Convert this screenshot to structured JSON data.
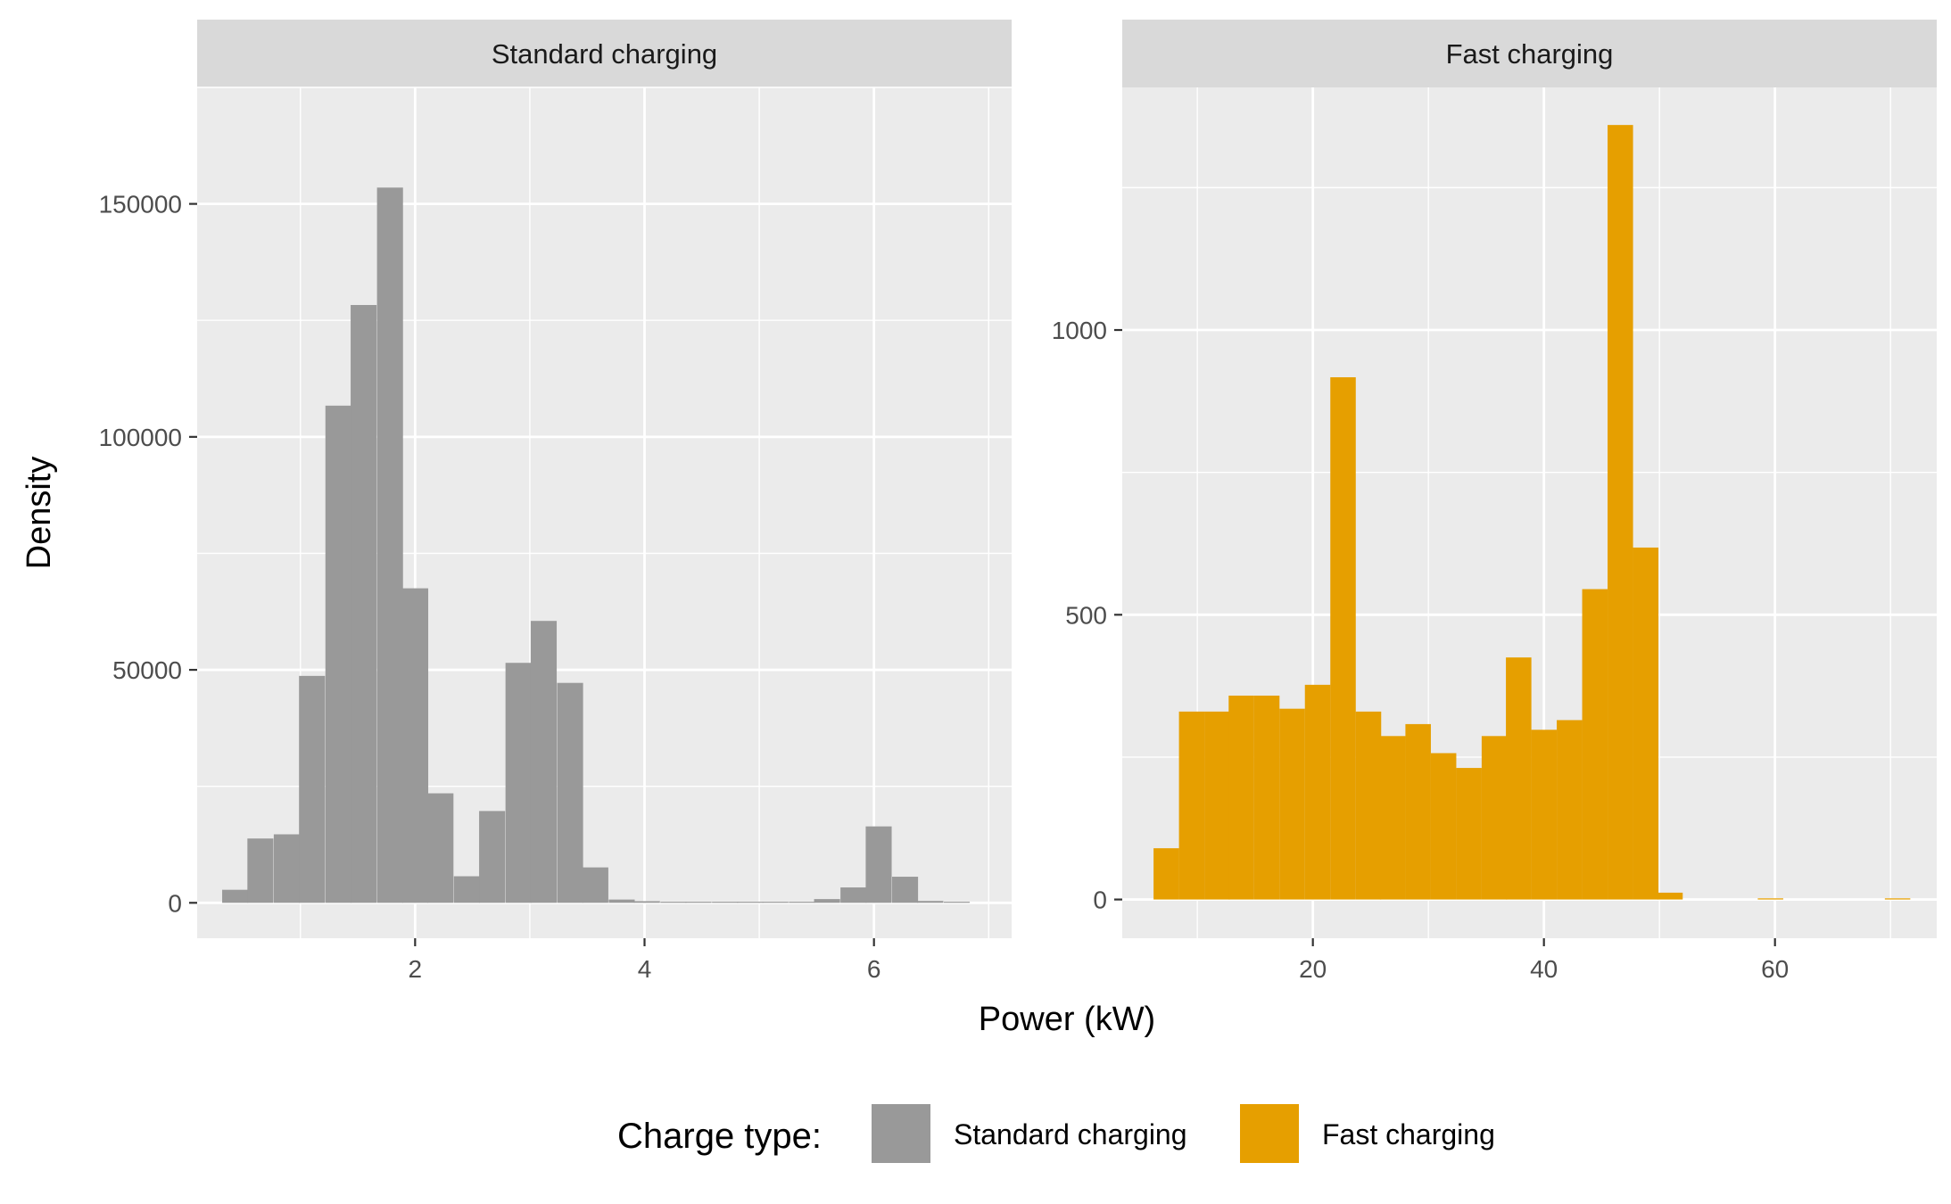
{
  "figure": {
    "xlabel": "Power (kW)",
    "ylabel": "Density"
  },
  "legend": {
    "title": "Charge type:",
    "placement": "bottom",
    "items": [
      {
        "label": "Standard charging",
        "color": "#999999"
      },
      {
        "label": "Fast charging",
        "color": "#E69F00"
      }
    ]
  },
  "colors": {
    "panel_background": "#EBEBEB",
    "strip_background": "#D9D9D9",
    "grid": "#FFFFFF"
  },
  "chart_data": [
    {
      "type": "bar",
      "panel": "Standard charging",
      "strip_label": "Standard charging",
      "color": "#999999",
      "grid": true,
      "xlim": [
        0.1,
        7.2
      ],
      "ylim": [
        -7600,
        175000
      ],
      "x_ticks": [
        2,
        4,
        6
      ],
      "y_ticks": [
        0,
        50000,
        100000,
        150000
      ],
      "bin_width": 0.224,
      "bins": [
        {
          "x": 0.43,
          "y": 2800
        },
        {
          "x": 0.65,
          "y": 13800
        },
        {
          "x": 0.88,
          "y": 14700
        },
        {
          "x": 1.1,
          "y": 48700
        },
        {
          "x": 1.33,
          "y": 106700
        },
        {
          "x": 1.55,
          "y": 128300
        },
        {
          "x": 1.78,
          "y": 153500
        },
        {
          "x": 2.0,
          "y": 67500
        },
        {
          "x": 2.22,
          "y": 23500
        },
        {
          "x": 2.45,
          "y": 5700
        },
        {
          "x": 2.67,
          "y": 19700
        },
        {
          "x": 2.9,
          "y": 51500
        },
        {
          "x": 3.12,
          "y": 60500
        },
        {
          "x": 3.35,
          "y": 47200
        },
        {
          "x": 3.57,
          "y": 7600
        },
        {
          "x": 3.8,
          "y": 700
        },
        {
          "x": 4.02,
          "y": 350
        },
        {
          "x": 4.25,
          "y": 150
        },
        {
          "x": 4.47,
          "y": 100
        },
        {
          "x": 4.7,
          "y": 100
        },
        {
          "x": 4.92,
          "y": 150
        },
        {
          "x": 5.14,
          "y": 200
        },
        {
          "x": 5.37,
          "y": 200
        },
        {
          "x": 5.59,
          "y": 800
        },
        {
          "x": 5.82,
          "y": 3300
        },
        {
          "x": 6.04,
          "y": 16400
        },
        {
          "x": 6.27,
          "y": 5600
        },
        {
          "x": 6.49,
          "y": 400
        },
        {
          "x": 6.72,
          "y": 100
        }
      ]
    },
    {
      "type": "bar",
      "panel": "Fast charging",
      "strip_label": "Fast charging",
      "color": "#E69F00",
      "grid": true,
      "xlim": [
        3.5,
        74
      ],
      "ylim": [
        -68,
        1426
      ],
      "x_ticks": [
        20,
        40,
        60
      ],
      "y_ticks": [
        0,
        500,
        1000
      ],
      "bin_width": 2.18,
      "bins": [
        {
          "x": 7.3,
          "y": 90
        },
        {
          "x": 9.5,
          "y": 330
        },
        {
          "x": 11.7,
          "y": 330
        },
        {
          "x": 13.8,
          "y": 358
        },
        {
          "x": 16.0,
          "y": 358
        },
        {
          "x": 18.2,
          "y": 335
        },
        {
          "x": 20.4,
          "y": 377
        },
        {
          "x": 22.6,
          "y": 917
        },
        {
          "x": 24.8,
          "y": 330
        },
        {
          "x": 26.9,
          "y": 287
        },
        {
          "x": 29.1,
          "y": 308
        },
        {
          "x": 31.3,
          "y": 257
        },
        {
          "x": 33.5,
          "y": 231
        },
        {
          "x": 35.7,
          "y": 287
        },
        {
          "x": 37.8,
          "y": 425
        },
        {
          "x": 40.0,
          "y": 298
        },
        {
          "x": 42.2,
          "y": 315
        },
        {
          "x": 44.4,
          "y": 545
        },
        {
          "x": 46.6,
          "y": 1360
        },
        {
          "x": 48.8,
          "y": 618
        },
        {
          "x": 50.9,
          "y": 12
        },
        {
          "x": 59.6,
          "y": 2
        },
        {
          "x": 70.6,
          "y": 2
        }
      ]
    }
  ]
}
